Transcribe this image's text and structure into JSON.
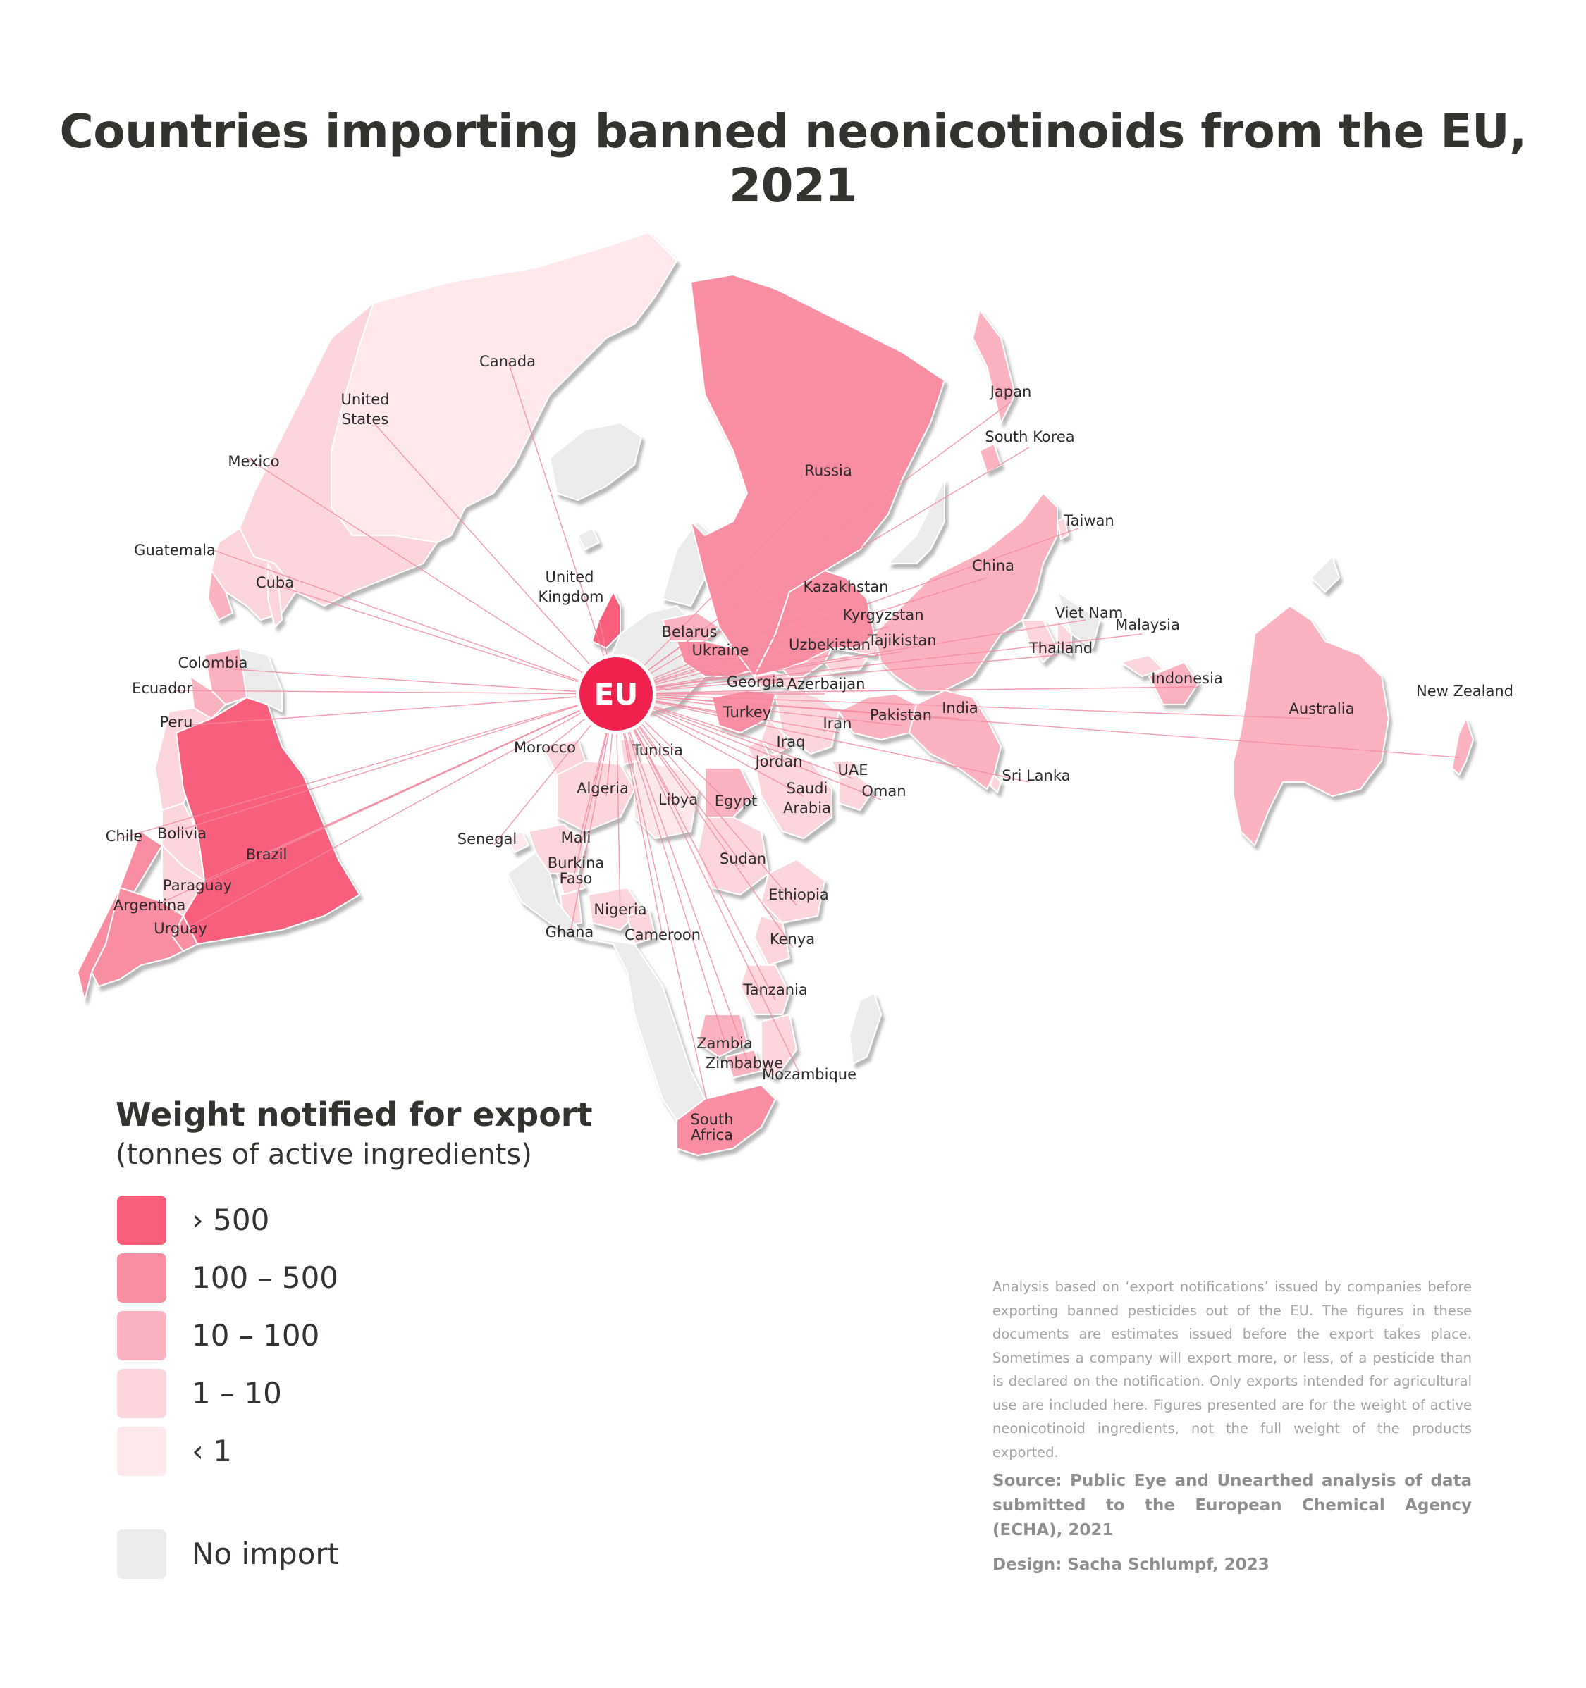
{
  "title": "Countries importing banned neonicotinoids from the EU, 2021",
  "hub_label": "EU",
  "colors": {
    "gt500": "#f75f7d",
    "100_500": "#f98ea3",
    "10_100": "#fbb3c2",
    "1_10": "#fdd5dd",
    "lt1": "#fee8ec",
    "none": "#ebebeb",
    "hub": "#f0224d",
    "line": "#f48aa0"
  },
  "legend": {
    "title": "Weight notified for export",
    "subtitle": "(tonnes of active ingredients)",
    "items": [
      {
        "label": "› 500",
        "color": "#f75f7d"
      },
      {
        "label": "100 – 500",
        "color": "#f98ea3"
      },
      {
        "label": "10 – 100",
        "color": "#fbb3c2"
      },
      {
        "label": "1 – 10",
        "color": "#fdd5dd"
      },
      {
        "label": "‹ 1",
        "color": "#fee8ec"
      }
    ],
    "none_label": "No import",
    "none_color": "#ebebeb"
  },
  "countries": [
    {
      "name": "Canada",
      "cls": "lt1"
    },
    {
      "name": "United States",
      "cls": "1_10"
    },
    {
      "name": "Mexico",
      "cls": "1_10"
    },
    {
      "name": "Guatemala",
      "cls": "10_100"
    },
    {
      "name": "Cuba",
      "cls": "1_10"
    },
    {
      "name": "Colombia",
      "cls": "10_100"
    },
    {
      "name": "Ecuador",
      "cls": "10_100"
    },
    {
      "name": "Peru",
      "cls": "1_10"
    },
    {
      "name": "Brazil",
      "cls": "gt500"
    },
    {
      "name": "Bolivia",
      "cls": "1_10"
    },
    {
      "name": "Chile",
      "cls": "100_500"
    },
    {
      "name": "Paraguay",
      "cls": "1_10"
    },
    {
      "name": "Argentina",
      "cls": "100_500"
    },
    {
      "name": "Urguay",
      "cls": "100_500"
    },
    {
      "name": "United Kingdom",
      "cls": "gt500"
    },
    {
      "name": "Belarus",
      "cls": "10_100"
    },
    {
      "name": "Ukraine",
      "cls": "100_500"
    },
    {
      "name": "Russia",
      "cls": "100_500"
    },
    {
      "name": "Kazakhstan",
      "cls": "100_500"
    },
    {
      "name": "Kyrgyzstan",
      "cls": "1_10"
    },
    {
      "name": "Uzbekistan",
      "cls": "10_100"
    },
    {
      "name": "Tajikistan",
      "cls": "1_10"
    },
    {
      "name": "Georgia",
      "cls": "10_100"
    },
    {
      "name": "Azerbaijan",
      "cls": "1_10"
    },
    {
      "name": "Turkey",
      "cls": "100_500"
    },
    {
      "name": "Iran",
      "cls": "1_10"
    },
    {
      "name": "Iraq",
      "cls": "1_10"
    },
    {
      "name": "Jordan",
      "cls": "1_10"
    },
    {
      "name": "Saudi Arabia",
      "cls": "1_10"
    },
    {
      "name": "UAE",
      "cls": "1_10"
    },
    {
      "name": "Oman",
      "cls": "1_10"
    },
    {
      "name": "Pakistan",
      "cls": "10_100"
    },
    {
      "name": "India",
      "cls": "10_100"
    },
    {
      "name": "Sri Lanka",
      "cls": "1_10"
    },
    {
      "name": "China",
      "cls": "10_100"
    },
    {
      "name": "Japan",
      "cls": "10_100"
    },
    {
      "name": "South Korea",
      "cls": "10_100"
    },
    {
      "name": "Taiwan",
      "cls": "1_10"
    },
    {
      "name": "Viet Nam",
      "cls": "1_10"
    },
    {
      "name": "Thailand",
      "cls": "1_10"
    },
    {
      "name": "Malaysia",
      "cls": "1_10"
    },
    {
      "name": "Indonesia",
      "cls": "10_100"
    },
    {
      "name": "Australia",
      "cls": "10_100"
    },
    {
      "name": "New Zealand",
      "cls": "10_100"
    },
    {
      "name": "Morocco",
      "cls": "1_10"
    },
    {
      "name": "Tunisia",
      "cls": "1_10"
    },
    {
      "name": "Algeria",
      "cls": "1_10"
    },
    {
      "name": "Libya",
      "cls": "lt1"
    },
    {
      "name": "Egypt",
      "cls": "10_100"
    },
    {
      "name": "Sudan",
      "cls": "1_10"
    },
    {
      "name": "Ethiopia",
      "cls": "1_10"
    },
    {
      "name": "Kenya",
      "cls": "1_10"
    },
    {
      "name": "Tanzania",
      "cls": "1_10"
    },
    {
      "name": "Senegal",
      "cls": "lt1"
    },
    {
      "name": "Mali",
      "cls": "1_10"
    },
    {
      "name": "Burkina Faso",
      "cls": "1_10"
    },
    {
      "name": "Ghana",
      "cls": "1_10"
    },
    {
      "name": "Nigeria",
      "cls": "1_10"
    },
    {
      "name": "Cameroon",
      "cls": "1_10"
    },
    {
      "name": "Zambia",
      "cls": "10_100"
    },
    {
      "name": "Zimbabwe",
      "cls": "10_100"
    },
    {
      "name": "Mozambique",
      "cls": "1_10"
    },
    {
      "name": "South Africa",
      "cls": "100_500"
    }
  ],
  "labels": [
    "Canada",
    "United",
    "States",
    "Mexico",
    "Guatemala",
    "Cuba",
    "Colombia",
    "Ecuador",
    "Peru",
    "Brazil",
    "Bolivia",
    "Chile",
    "Paraguay",
    "Argentina",
    "Urguay",
    "United",
    "Kingdom",
    "Belarus",
    "Ukraine",
    "Russia",
    "Kazakhstan",
    "Kyrgyzstan",
    "Uzbekistan",
    "Tajikistan",
    "Georgia",
    "Azerbaijan",
    "Turkey",
    "Iran",
    "Iraq",
    "Jordan",
    "Saudi",
    "Arabia",
    "UAE",
    "Oman",
    "Pakistan",
    "India",
    "Sri Lanka",
    "China",
    "Japan",
    "South Korea",
    "Taiwan",
    "Viet Nam",
    "Thailand",
    "Malaysia",
    "Indonesia",
    "Australia",
    "New Zealand",
    "Morocco",
    "Tunisia",
    "Algeria",
    "Libya",
    "Egypt",
    "Sudan",
    "Ethiopia",
    "Kenya",
    "Tanzania",
    "Senegal",
    "Mali",
    "Burkina",
    "Faso",
    "Ghana",
    "Nigeria",
    "Cameroon",
    "Zambia",
    "Zimbabwe",
    "Mozambique",
    "South",
    "Africa"
  ],
  "note": "Analysis based on ‘export notifications’ issued by companies before exporting banned pesticides out of the EU. The figures in these documents are estimates issued before the export takes place. Sometimes a company will export more, or less, of a pesticide than is declared on the notification. Only exports intended for agricultural use are included here. Figures presented are for the weight of active neonicotinoid ingredients, not the full weight of the products exported.",
  "source": "Source: Public Eye and Unearthed analysis of data submitted to the European Chemical Agency (ECHA), 2021",
  "design": "Design: Sacha Schlumpf, 2023"
}
